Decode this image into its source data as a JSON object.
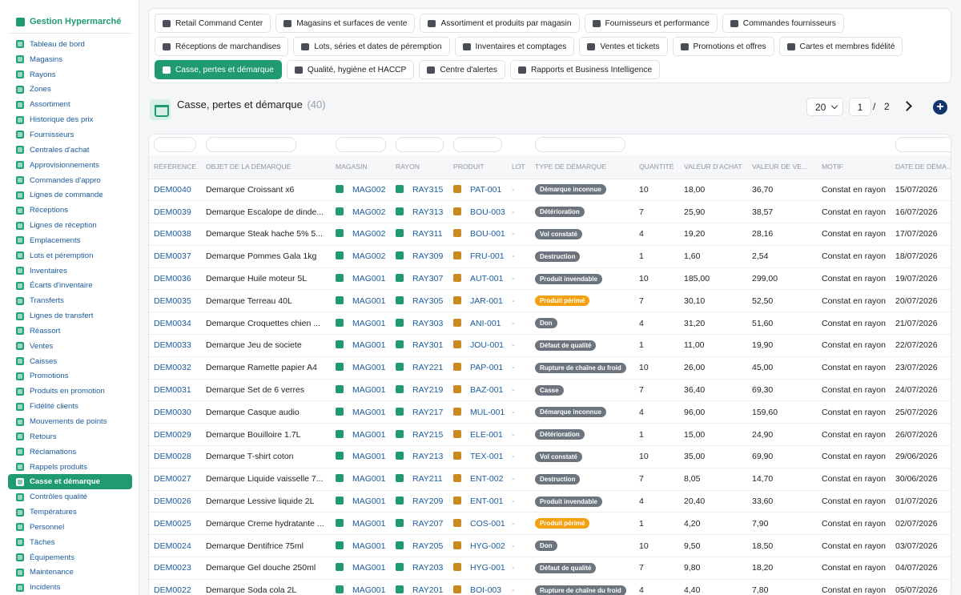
{
  "sidebar": {
    "brand": "Gestion Hypermarché",
    "items": [
      "Tableau de bord",
      "Magasins",
      "Rayons",
      "Zones",
      "Assortiment",
      "Historique des prix",
      "Fournisseurs",
      "Centrales d'achat",
      "Approvisionnements",
      "Commandes d'appro",
      "Lignes de commande",
      "Réceptions",
      "Lignes de réception",
      "Emplacements",
      "Lots et péremption",
      "Inventaires",
      "Écarts d'inventaire",
      "Transferts",
      "Lignes de transfert",
      "Réassort",
      "Ventes",
      "Caisses",
      "Promotions",
      "Produits en promotion",
      "Fidélité clients",
      "Mouvements de points",
      "Retours",
      "Réclamations",
      "Rappels produits",
      "Casse et démarque",
      "Contrôles qualité",
      "Températures",
      "Personnel",
      "Tâches",
      "Équipements",
      "Maintenance",
      "Incidents"
    ],
    "active_index": 29
  },
  "tabs": [
    [
      "Retail Command Center",
      "Magasins et surfaces de vente",
      "Assortiment et produits par magasin",
      "Fournisseurs et performance",
      "Commandes fournisseurs"
    ],
    [
      "Réceptions de marchandises",
      "Lots, séries et dates de péremption",
      "Inventaires et comptages",
      "Ventes et tickets",
      "Promotions et offres",
      "Cartes et membres fidélité"
    ],
    [
      "Casse, pertes et démarque",
      "Qualité, hygiène et HACCP",
      "Centre d'alertes",
      "Rapports et Business Intelligence"
    ]
  ],
  "active_tab": "Casse, pertes et démarque",
  "header": {
    "title": "Casse, pertes et démarque",
    "count": "(40)"
  },
  "pagination": {
    "per_page": "20",
    "current": "1",
    "separator": "/",
    "total": "2"
  },
  "table": {
    "columns": [
      "Référence",
      "Objet de la démarque",
      "Magasin",
      "Rayon",
      "Produit",
      "Lot",
      "Type de démarque",
      "Quantité",
      "Valeur d'achat",
      "Valeur de ve...",
      "Motif",
      "Date de déma..."
    ],
    "rows": [
      [
        "DEM0040",
        "Demarque Croissant x6",
        "MAG002",
        "RAY315",
        "PAT-001",
        "-",
        "Démarque inconnue",
        "10",
        "18,00",
        "36,70",
        "Constat en rayon",
        "15/07/2026"
      ],
      [
        "DEM0039",
        "Demarque Escalope de dinde...",
        "MAG002",
        "RAY313",
        "BOU-003",
        "-",
        "Détérioration",
        "7",
        "25,90",
        "38,57",
        "Constat en rayon",
        "16/07/2026"
      ],
      [
        "DEM0038",
        "Demarque Steak hache 5% 5...",
        "MAG002",
        "RAY311",
        "BOU-001",
        "-",
        "Vol constaté",
        "4",
        "19,20",
        "28,16",
        "Constat en rayon",
        "17/07/2026"
      ],
      [
        "DEM0037",
        "Demarque Pommes Gala 1kg",
        "MAG002",
        "RAY309",
        "FRU-001",
        "-",
        "Destruction",
        "1",
        "1,60",
        "2,54",
        "Constat en rayon",
        "18/07/2026"
      ],
      [
        "DEM0036",
        "Demarque Huile moteur 5L",
        "MAG001",
        "RAY307",
        "AUT-001",
        "-",
        "Produit invendable",
        "10",
        "185,00",
        "299,00",
        "Constat en rayon",
        "19/07/2026"
      ],
      [
        "DEM0035",
        "Demarque Terreau 40L",
        "MAG001",
        "RAY305",
        "JAR-001",
        "-",
        "Produit périmé",
        "7",
        "30,10",
        "52,50",
        "Constat en rayon",
        "20/07/2026"
      ],
      [
        "DEM0034",
        "Demarque Croquettes chien ...",
        "MAG001",
        "RAY303",
        "ANI-001",
        "-",
        "Don",
        "4",
        "31,20",
        "51,60",
        "Constat en rayon",
        "21/07/2026"
      ],
      [
        "DEM0033",
        "Demarque Jeu de societe",
        "MAG001",
        "RAY301",
        "JOU-001",
        "-",
        "Défaut de qualité",
        "1",
        "11,00",
        "19,90",
        "Constat en rayon",
        "22/07/2026"
      ],
      [
        "DEM0032",
        "Demarque Ramette papier A4",
        "MAG001",
        "RAY221",
        "PAP-001",
        "-",
        "Rupture de chaîne du froid",
        "10",
        "26,00",
        "45,00",
        "Constat en rayon",
        "23/07/2026"
      ],
      [
        "DEM0031",
        "Demarque Set de 6 verres",
        "MAG001",
        "RAY219",
        "BAZ-001",
        "-",
        "Casse",
        "7",
        "36,40",
        "69,30",
        "Constat en rayon",
        "24/07/2026"
      ],
      [
        "DEM0030",
        "Demarque Casque audio",
        "MAG001",
        "RAY217",
        "MUL-001",
        "-",
        "Démarque inconnue",
        "4",
        "96,00",
        "159,60",
        "Constat en rayon",
        "25/07/2026"
      ],
      [
        "DEM0029",
        "Demarque Bouilloire 1.7L",
        "MAG001",
        "RAY215",
        "ELE-001",
        "-",
        "Détérioration",
        "1",
        "15,00",
        "24,90",
        "Constat en rayon",
        "26/07/2026"
      ],
      [
        "DEM0028",
        "Demarque T-shirt coton",
        "MAG001",
        "RAY213",
        "TEX-001",
        "-",
        "Vol constaté",
        "10",
        "35,00",
        "69,90",
        "Constat en rayon",
        "29/06/2026"
      ],
      [
        "DEM0027",
        "Demarque Liquide vaisselle 7...",
        "MAG001",
        "RAY211",
        "ENT-002",
        "-",
        "Destruction",
        "7",
        "8,05",
        "14,70",
        "Constat en rayon",
        "30/06/2026"
      ],
      [
        "DEM0026",
        "Demarque Lessive liquide 2L",
        "MAG001",
        "RAY209",
        "ENT-001",
        "-",
        "Produit invendable",
        "4",
        "20,40",
        "33,60",
        "Constat en rayon",
        "01/07/2026"
      ],
      [
        "DEM0025",
        "Demarque Creme hydratante ...",
        "MAG001",
        "RAY207",
        "COS-001",
        "-",
        "Produit périmé",
        "1",
        "4,20",
        "7,90",
        "Constat en rayon",
        "02/07/2026"
      ],
      [
        "DEM0024",
        "Demarque Dentifrice 75ml",
        "MAG001",
        "RAY205",
        "HYG-002",
        "-",
        "Don",
        "10",
        "9,50",
        "18,50",
        "Constat en rayon",
        "03/07/2026"
      ],
      [
        "DEM0023",
        "Demarque Gel douche 250ml",
        "MAG001",
        "RAY203",
        "HYG-001",
        "-",
        "Défaut de qualité",
        "7",
        "9,80",
        "18,20",
        "Constat en rayon",
        "04/07/2026"
      ],
      [
        "DEM0022",
        "Demarque Soda cola 2L",
        "MAG001",
        "RAY201",
        "BOI-003",
        "-",
        "Rupture de chaîne du froid",
        "4",
        "4,40",
        "7,80",
        "Constat en rayon",
        "05/07/2026"
      ]
    ]
  },
  "colors": {
    "accent": "#1f9a73",
    "link": "#1a5b9c",
    "badge_default": "#6c757d",
    "badge_warning": "#f5a00f",
    "add_button": "#12336b"
  }
}
